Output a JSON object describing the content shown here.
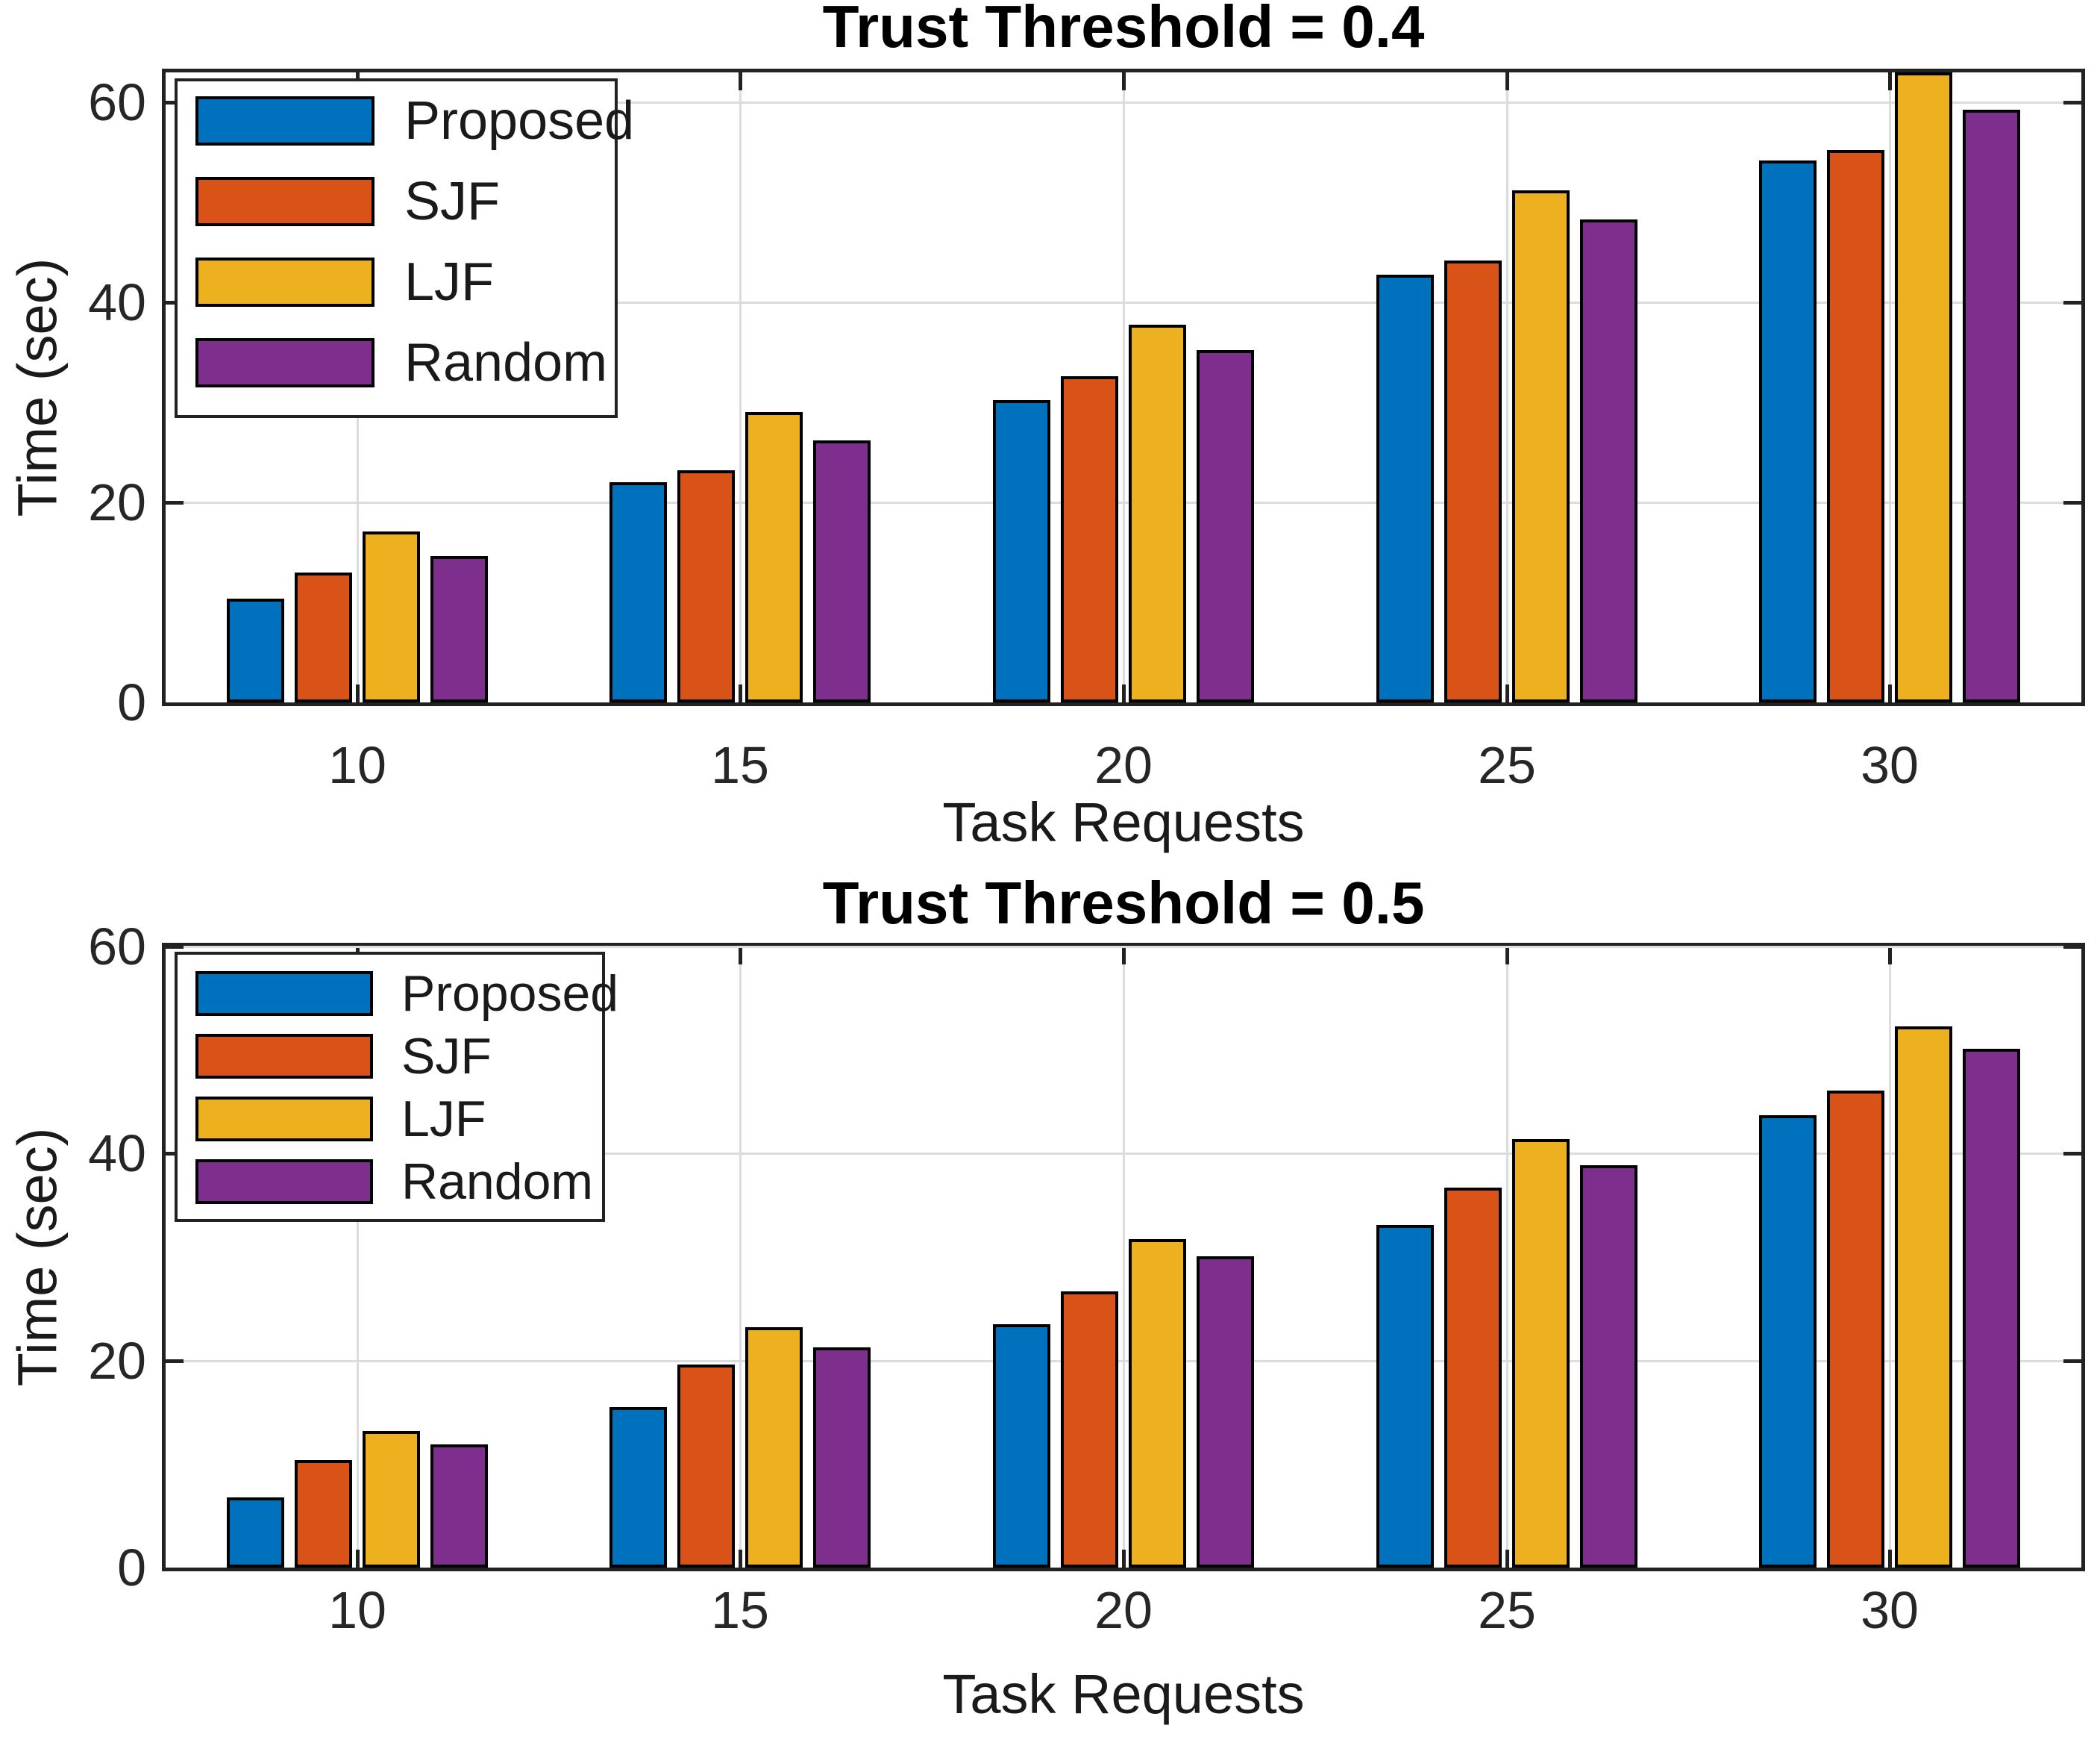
{
  "figure": {
    "background": "#FFFFFF"
  },
  "chart_data": [
    {
      "type": "bar",
      "title": "Trust Threshold = 0.4",
      "xlabel": "Task Requests",
      "ylabel": "Time (sec)",
      "categories": [
        "10",
        "15",
        "20",
        "25",
        "30"
      ],
      "ytick_labels": [
        "0",
        "20",
        "40",
        "60"
      ],
      "yticks": [
        0,
        20,
        40,
        60
      ],
      "ylim": [
        0,
        63
      ],
      "grid": true,
      "legend_position": "top-left",
      "legend_entries": [
        "Proposed",
        "SJF",
        "LJF",
        "Random"
      ],
      "series": [
        {
          "name": "Proposed",
          "color": "#0072BD",
          "values": [
            10.4,
            22.0,
            30.2,
            42.8,
            54.2
          ]
        },
        {
          "name": "SJF",
          "color": "#D95319",
          "values": [
            13.0,
            23.2,
            32.6,
            44.2,
            55.2
          ]
        },
        {
          "name": "LJF",
          "color": "#EDB120",
          "values": [
            17.1,
            29.0,
            37.8,
            51.2,
            63.0
          ]
        },
        {
          "name": "Random",
          "color": "#7E2F8E",
          "values": [
            14.6,
            26.2,
            35.2,
            48.3,
            59.3
          ]
        }
      ]
    },
    {
      "type": "bar",
      "title": "Trust Threshold = 0.5",
      "xlabel": "Task Requests",
      "ylabel": "Time (sec)",
      "categories": [
        "10",
        "15",
        "20",
        "25",
        "30"
      ],
      "ytick_labels": [
        "0",
        "20",
        "40",
        "60"
      ],
      "yticks": [
        0,
        20,
        40,
        60
      ],
      "ylim": [
        0,
        60
      ],
      "grid": true,
      "legend_position": "top-left",
      "legend_entries": [
        "Proposed",
        "SJF",
        "LJF",
        "Random"
      ],
      "series": [
        {
          "name": "Proposed",
          "color": "#0072BD",
          "values": [
            6.8,
            15.5,
            23.5,
            33.1,
            43.7
          ]
        },
        {
          "name": "SJF",
          "color": "#D95319",
          "values": [
            10.4,
            19.6,
            26.7,
            36.7,
            46.1
          ]
        },
        {
          "name": "LJF",
          "color": "#EDB120",
          "values": [
            13.2,
            23.2,
            31.7,
            41.4,
            52.3
          ]
        },
        {
          "name": "Random",
          "color": "#7E2F8E",
          "values": [
            11.9,
            21.3,
            30.1,
            38.9,
            50.1
          ]
        }
      ]
    }
  ]
}
